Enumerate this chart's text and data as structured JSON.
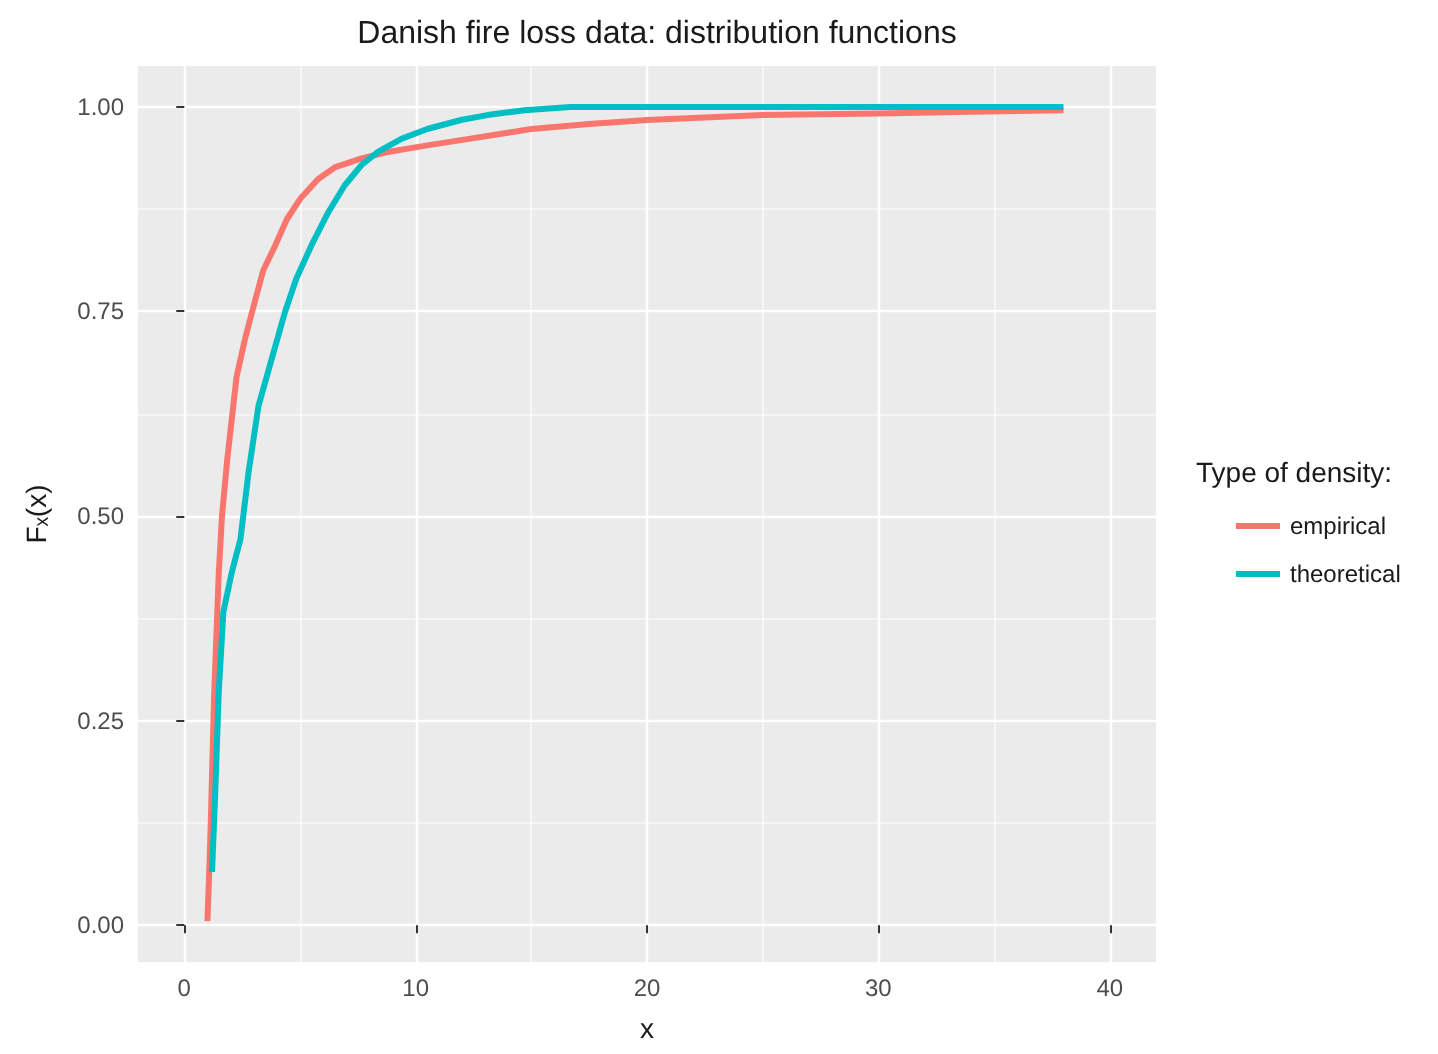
{
  "chart_data": {
    "type": "line",
    "title": "Danish fire loss data: distribution functions",
    "xlabel": "x",
    "ylabel": "Fₓ(x)",
    "legend_title": "Type of density:",
    "series": [
      {
        "name": "empirical",
        "color": "#f8766d",
        "x": [
          1.0,
          1.06,
          1.14,
          1.29,
          1.49,
          1.63,
          1.86,
          2.06,
          2.26,
          2.63,
          3.01,
          3.41,
          3.92,
          4.44,
          5.02,
          5.79,
          6.5,
          7.66,
          8.8,
          10.5,
          12.1,
          15.0,
          17.5,
          20.0,
          25.0,
          30.0,
          34.0,
          38.0
        ],
        "values": [
          0.005,
          0.05,
          0.12,
          0.28,
          0.43,
          0.5,
          0.57,
          0.62,
          0.67,
          0.717,
          0.758,
          0.8,
          0.83,
          0.863,
          0.888,
          0.912,
          0.926,
          0.937,
          0.945,
          0.953,
          0.96,
          0.973,
          0.979,
          0.984,
          0.99,
          0.992,
          0.994,
          0.996
        ]
      },
      {
        "name": "theoretical",
        "color": "#00bfc4",
        "x": [
          1.2,
          1.34,
          1.49,
          1.69,
          2.06,
          2.43,
          2.78,
          3.21,
          3.78,
          4.35,
          4.84,
          5.5,
          6.22,
          6.93,
          7.66,
          8.37,
          9.38,
          10.5,
          11.96,
          13.1,
          14.7,
          16.7,
          20.0,
          30.0,
          38.0
        ],
        "values": [
          0.065,
          0.163,
          0.285,
          0.383,
          0.432,
          0.472,
          0.554,
          0.635,
          0.692,
          0.749,
          0.79,
          0.831,
          0.871,
          0.904,
          0.929,
          0.945,
          0.961,
          0.973,
          0.984,
          0.99,
          0.996,
          1.0,
          1.0,
          1.0,
          1.0
        ]
      }
    ],
    "xlim": [
      -2,
      42
    ],
    "xticks": [
      0,
      10,
      20,
      30,
      40
    ],
    "ylim": [
      -0.045,
      1.05
    ],
    "yticks": [
      {
        "value": 0,
        "label": "0.00"
      },
      {
        "value": 0.25,
        "label": "0.25"
      },
      {
        "value": 0.5,
        "label": "0.50"
      },
      {
        "value": 0.75,
        "label": "0.75"
      },
      {
        "value": 1,
        "label": "1.00"
      }
    ],
    "grid": true,
    "legend": "right"
  }
}
